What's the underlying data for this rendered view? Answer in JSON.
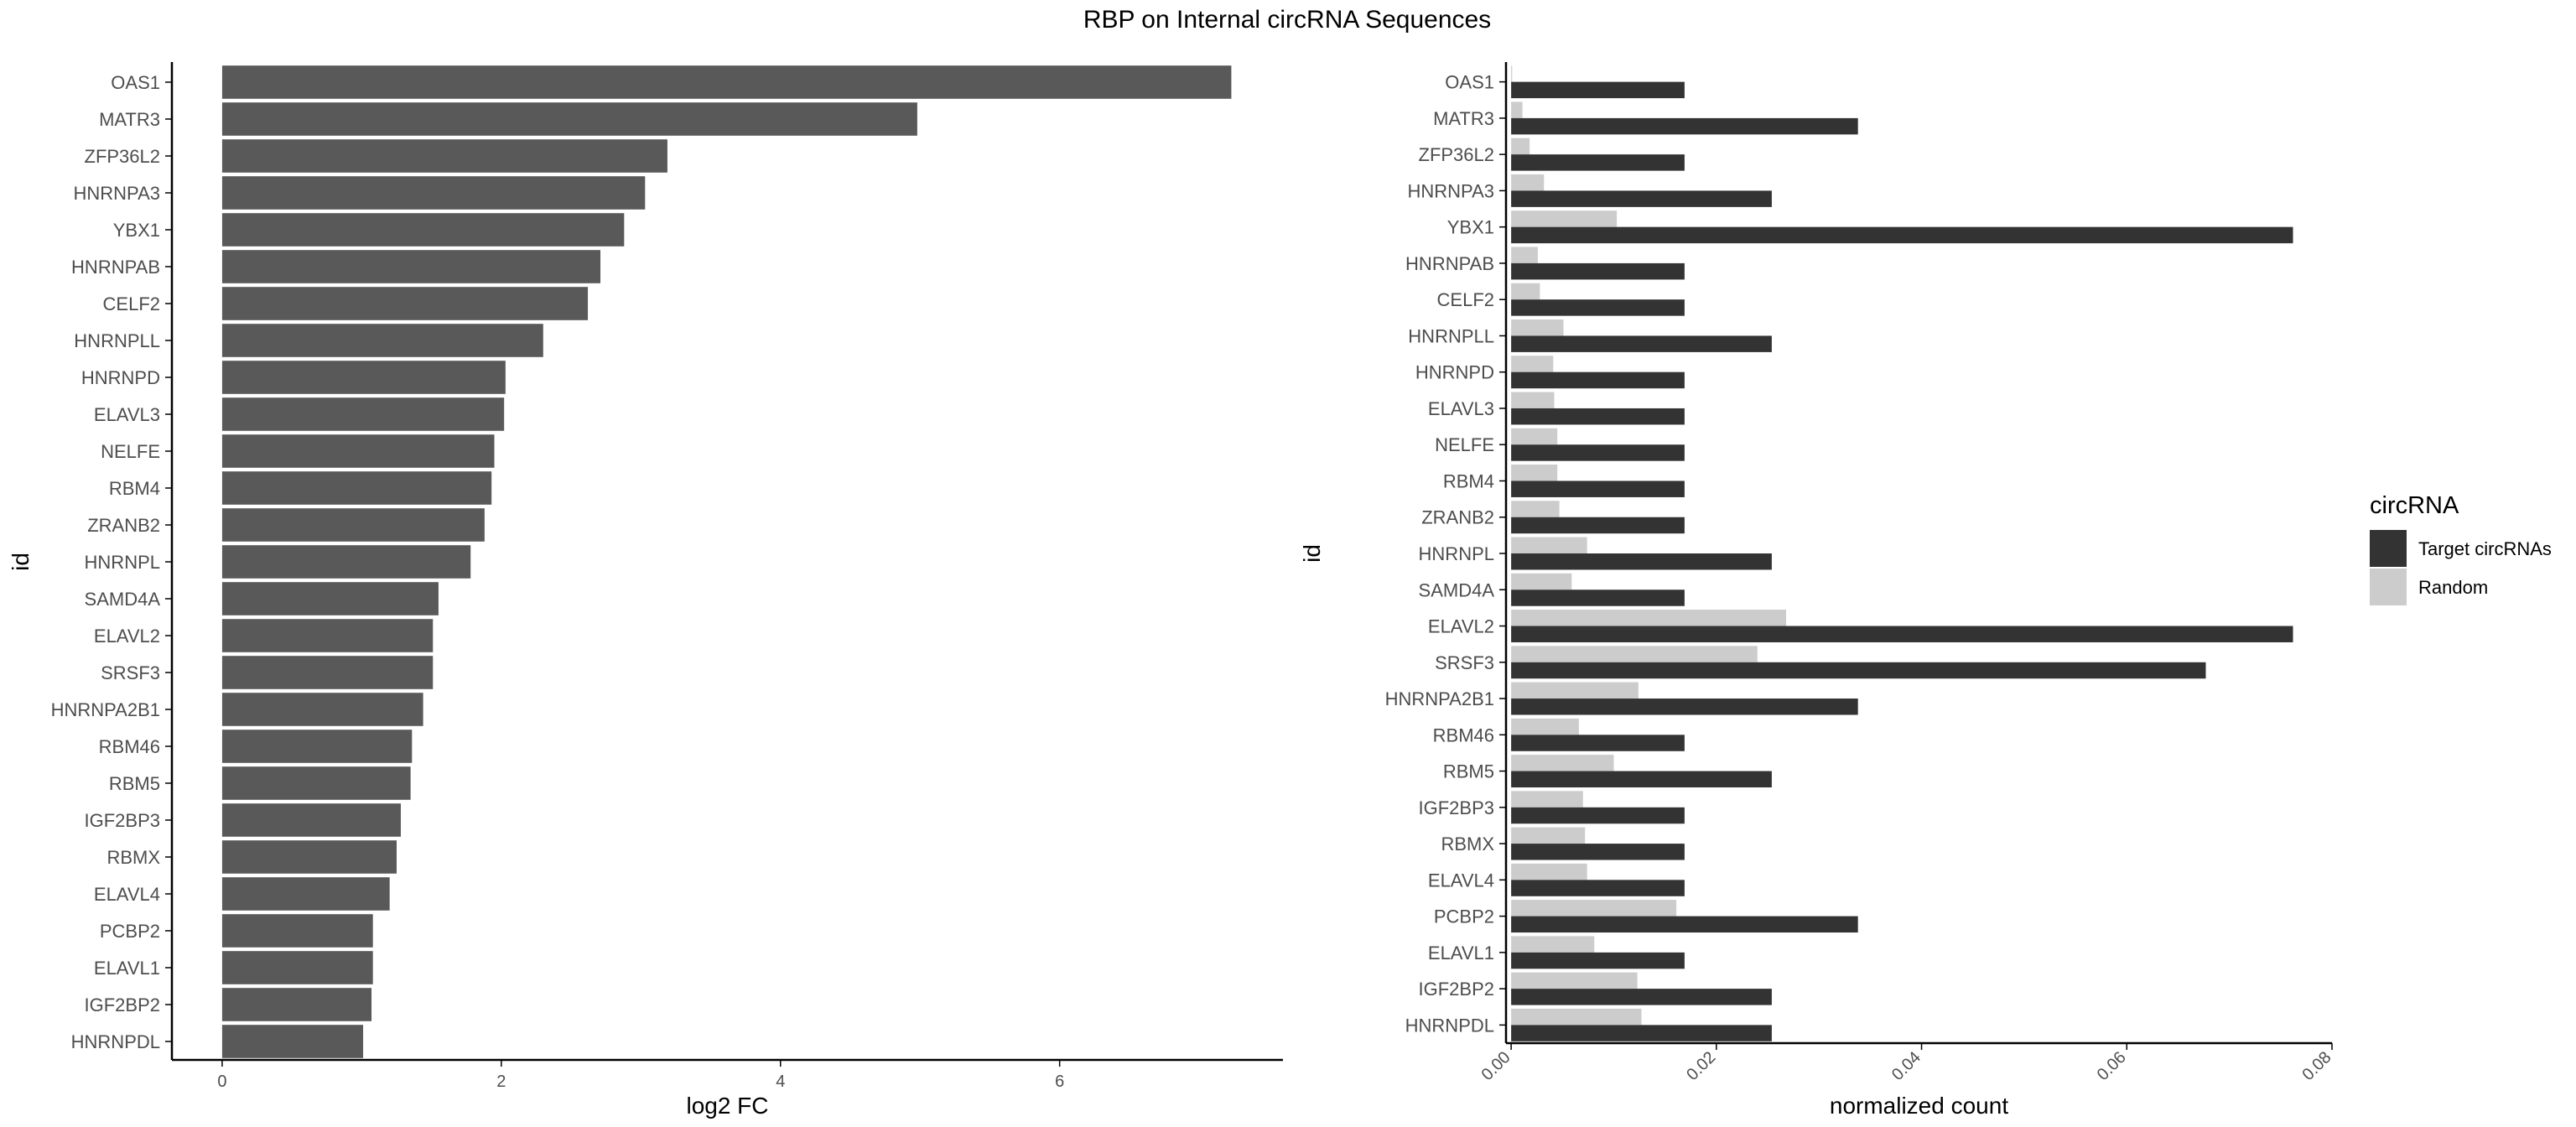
{
  "title": "RBP on Internal circRNA Sequences",
  "colors": {
    "left_bar": "#595959",
    "target": "#333333",
    "random": "#cccccc",
    "axis": "#000000",
    "tick_text": "#4d4d4d"
  },
  "chart_data": [
    {
      "type": "bar",
      "orientation": "horizontal",
      "categories": [
        "OAS1",
        "MATR3",
        "ZFP36L2",
        "HNRNPA3",
        "YBX1",
        "HNRNPAB",
        "CELF2",
        "HNRNPLL",
        "HNRNPD",
        "ELAVL3",
        "NELFE",
        "RBM4",
        "ZRANB2",
        "HNRNPL",
        "SAMD4A",
        "ELAVL2",
        "SRSF3",
        "HNRNPA2B1",
        "RBM46",
        "RBM5",
        "IGF2BP3",
        "RBMX",
        "ELAVL4",
        "PCBP2",
        "ELAVL1",
        "IGF2BP2",
        "HNRNPDL"
      ],
      "values": [
        7.23,
        4.98,
        3.19,
        3.03,
        2.88,
        2.71,
        2.62,
        2.3,
        2.03,
        2.02,
        1.95,
        1.93,
        1.88,
        1.78,
        1.55,
        1.51,
        1.51,
        1.44,
        1.36,
        1.35,
        1.28,
        1.25,
        1.2,
        1.08,
        1.08,
        1.07,
        1.01
      ],
      "xlabel": "log2 FC",
      "ylabel": "id",
      "xlim": [
        -0.36,
        7.6
      ],
      "xticks": [
        0,
        2,
        4,
        6
      ],
      "xtick_labels": [
        "0",
        "2",
        "4",
        "6"
      ],
      "grid": false
    },
    {
      "type": "bar",
      "orientation": "horizontal",
      "grouped": true,
      "categories": [
        "OAS1",
        "MATR3",
        "ZFP36L2",
        "HNRNPA3",
        "YBX1",
        "HNRNPAB",
        "CELF2",
        "HNRNPLL",
        "HNRNPD",
        "ELAVL3",
        "NELFE",
        "RBM4",
        "ZRANB2",
        "HNRNPL",
        "SAMD4A",
        "ELAVL2",
        "SRSF3",
        "HNRNPA2B1",
        "RBM46",
        "RBM5",
        "IGF2BP3",
        "RBMX",
        "ELAVL4",
        "PCBP2",
        "ELAVL1",
        "IGF2BP2",
        "HNRNPDL"
      ],
      "series": [
        {
          "name": "Target circRNAs",
          "color": "#333333",
          "values": [
            0.0169,
            0.0338,
            0.0169,
            0.0254,
            0.0762,
            0.0169,
            0.0169,
            0.0254,
            0.0169,
            0.0169,
            0.0169,
            0.0169,
            0.0169,
            0.0254,
            0.0169,
            0.0762,
            0.0677,
            0.0338,
            0.0169,
            0.0254,
            0.0169,
            0.0169,
            0.0169,
            0.0338,
            0.0169,
            0.0254,
            0.0254
          ]
        },
        {
          "name": "Random",
          "color": "#cccccc",
          "values": [
            0.0001,
            0.0011,
            0.0018,
            0.0032,
            0.0103,
            0.0026,
            0.0028,
            0.0051,
            0.0041,
            0.0042,
            0.0045,
            0.0045,
            0.0047,
            0.0074,
            0.0059,
            0.0268,
            0.024,
            0.0124,
            0.0066,
            0.01,
            0.007,
            0.0072,
            0.0074,
            0.0161,
            0.0081,
            0.0123,
            0.0127
          ]
        }
      ],
      "xlabel": "normalized count",
      "ylabel": "id",
      "xlim": [
        -0.0005,
        0.08
      ],
      "xticks": [
        0.0,
        0.02,
        0.04,
        0.06,
        0.08
      ],
      "xtick_labels": [
        "0.00",
        "0.02",
        "0.04",
        "0.06",
        "0.08"
      ],
      "legend": {
        "title": "circRNA",
        "position": "right",
        "entries": [
          "Target circRNAs",
          "Random"
        ]
      },
      "grid": false
    }
  ]
}
